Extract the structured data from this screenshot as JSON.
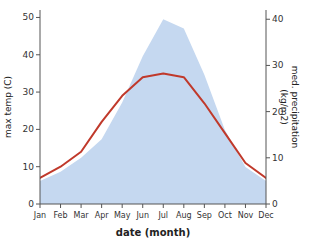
{
  "chart_data": {
    "type": "line",
    "categories": [
      "Jan",
      "Feb",
      "Mar",
      "Apr",
      "May",
      "Jun",
      "Jul",
      "Aug",
      "Sep",
      "Oct",
      "Nov",
      "Dec"
    ],
    "series": [
      {
        "type": "area",
        "axis": "y2",
        "color": "#c5d8f0",
        "values": [
          5,
          7,
          10,
          14,
          22,
          32,
          40,
          38,
          28,
          16,
          8,
          5
        ]
      },
      {
        "type": "line",
        "color": "#c0392b",
        "values": [
          7,
          10,
          14,
          22,
          29,
          34,
          35,
          34,
          27,
          19,
          11,
          7
        ]
      }
    ],
    "ylim": [
      0,
      52
    ],
    "yticks": [
      0,
      10,
      20,
      30,
      40,
      50
    ],
    "y2lim": [
      0,
      42
    ],
    "y2ticks": [
      0,
      10,
      20,
      30,
      40
    ],
    "xlabel": "date (month)",
    "ylabel": "max temp (C)",
    "y2label": "med. precipitation\n(kg/m2)",
    "grid": false
  }
}
